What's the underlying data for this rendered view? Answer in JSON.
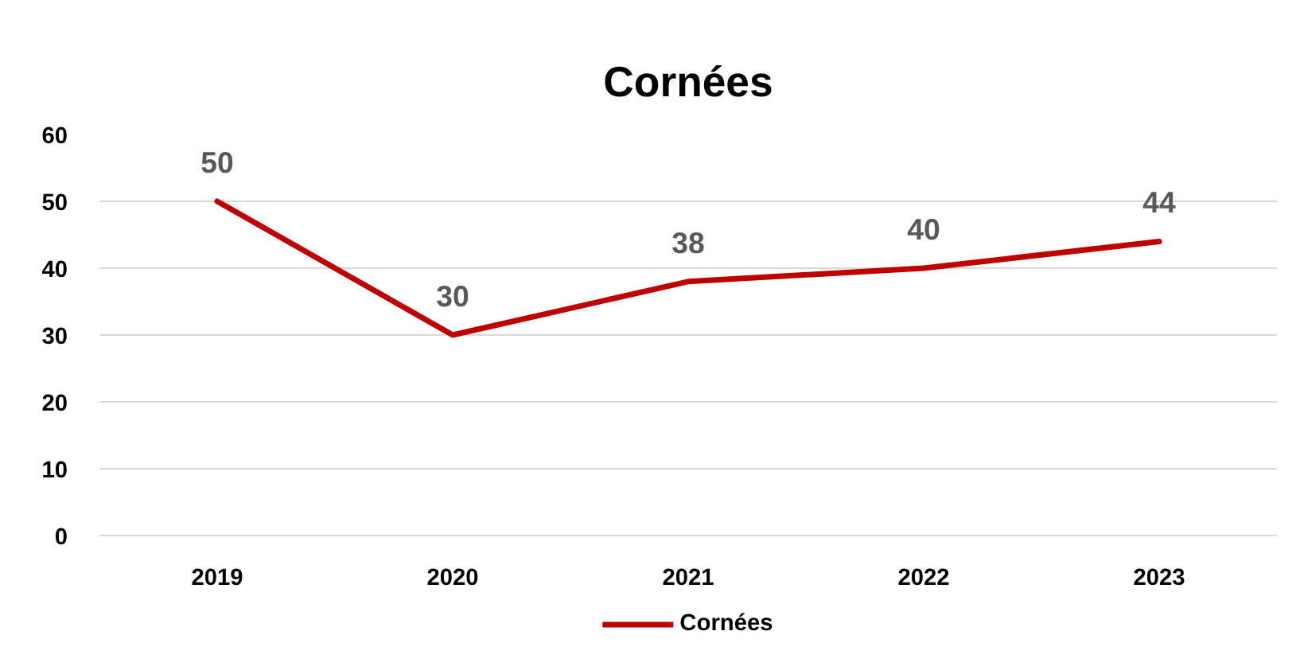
{
  "chart_data": {
    "type": "line",
    "title": "Cornées",
    "categories": [
      "2019",
      "2020",
      "2021",
      "2022",
      "2023"
    ],
    "series": [
      {
        "name": "Cornées",
        "color": "#c00000",
        "values": [
          50,
          30,
          38,
          40,
          44
        ]
      }
    ],
    "ylim": [
      0,
      60
    ],
    "yticks": [
      0,
      10,
      20,
      30,
      40,
      50,
      60
    ],
    "grid": "y",
    "legend": "bottom",
    "data_labels": true,
    "marker": "none",
    "line_style": "solid"
  }
}
